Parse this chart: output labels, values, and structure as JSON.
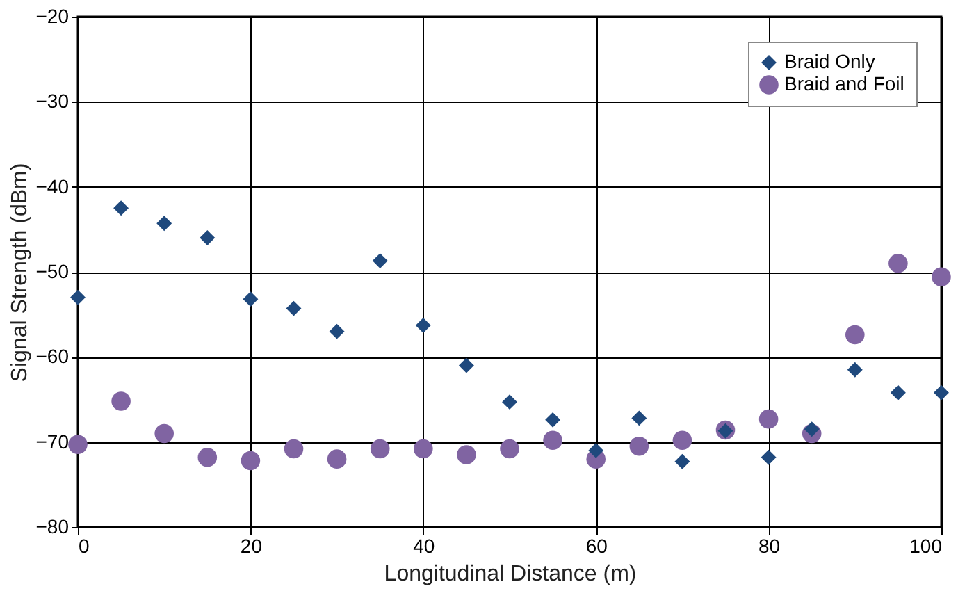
{
  "chart_data": {
    "type": "scatter",
    "xlabel": "Longitudinal Distance (m)",
    "ylabel": "Signal Strength (dBm)",
    "x": [
      0,
      5,
      10,
      15,
      20,
      25,
      30,
      35,
      40,
      45,
      50,
      55,
      60,
      65,
      70,
      75,
      80,
      85,
      90,
      95,
      100
    ],
    "series": [
      {
        "name": "Braid Only",
        "color": "#1f497d",
        "marker": "diamond",
        "values": [
          -53,
          -42.5,
          -44.3,
          -46,
          -53.2,
          -54.3,
          -57,
          -48.7,
          -56.3,
          -61,
          -65.3,
          -67.4,
          -71,
          -67.2,
          -72.3,
          -68.7,
          -71.8,
          -68.5,
          -61.5,
          -64.2,
          -64.2
        ]
      },
      {
        "name": "Braid and Foil",
        "color": "#8064a2",
        "marker": "circle",
        "values": [
          -70.3,
          -65.2,
          -69,
          -71.8,
          -72.2,
          -70.8,
          -72,
          -70.8,
          -70.8,
          -71.5,
          -70.8,
          -69.8,
          -72,
          -70.5,
          -69.8,
          -68.6,
          -67.3,
          -69,
          -57.4,
          -49,
          -50.6
        ]
      }
    ],
    "xlim": [
      0,
      100
    ],
    "xticks": [
      0,
      20,
      40,
      60,
      80,
      100
    ],
    "ylim": [
      -80,
      -20
    ],
    "yticks": [
      -80,
      -70,
      -60,
      -50,
      -40,
      -30,
      -20
    ],
    "grid": true,
    "legend": "top right"
  }
}
